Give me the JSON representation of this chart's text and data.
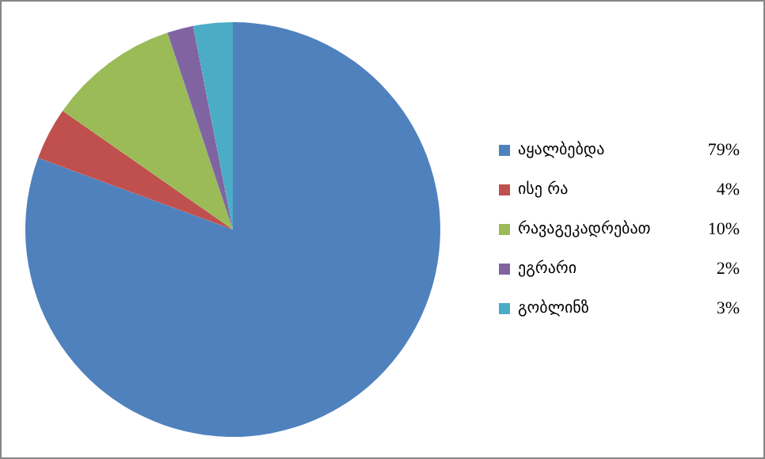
{
  "chart_data": {
    "type": "pie",
    "categories": [
      "აყალბებდა",
      "ისე რა",
      "რავაგეკადრებათ",
      "ეგრარი",
      "გობლინზ"
    ],
    "values": [
      79,
      4,
      10,
      2,
      3
    ],
    "value_labels": [
      "79%",
      "4%",
      "10%",
      "2%",
      "3%"
    ],
    "colors": [
      "#4f81bd",
      "#c0504d",
      "#9bbb59",
      "#8064a2",
      "#4bacc6"
    ],
    "legend": "right"
  }
}
